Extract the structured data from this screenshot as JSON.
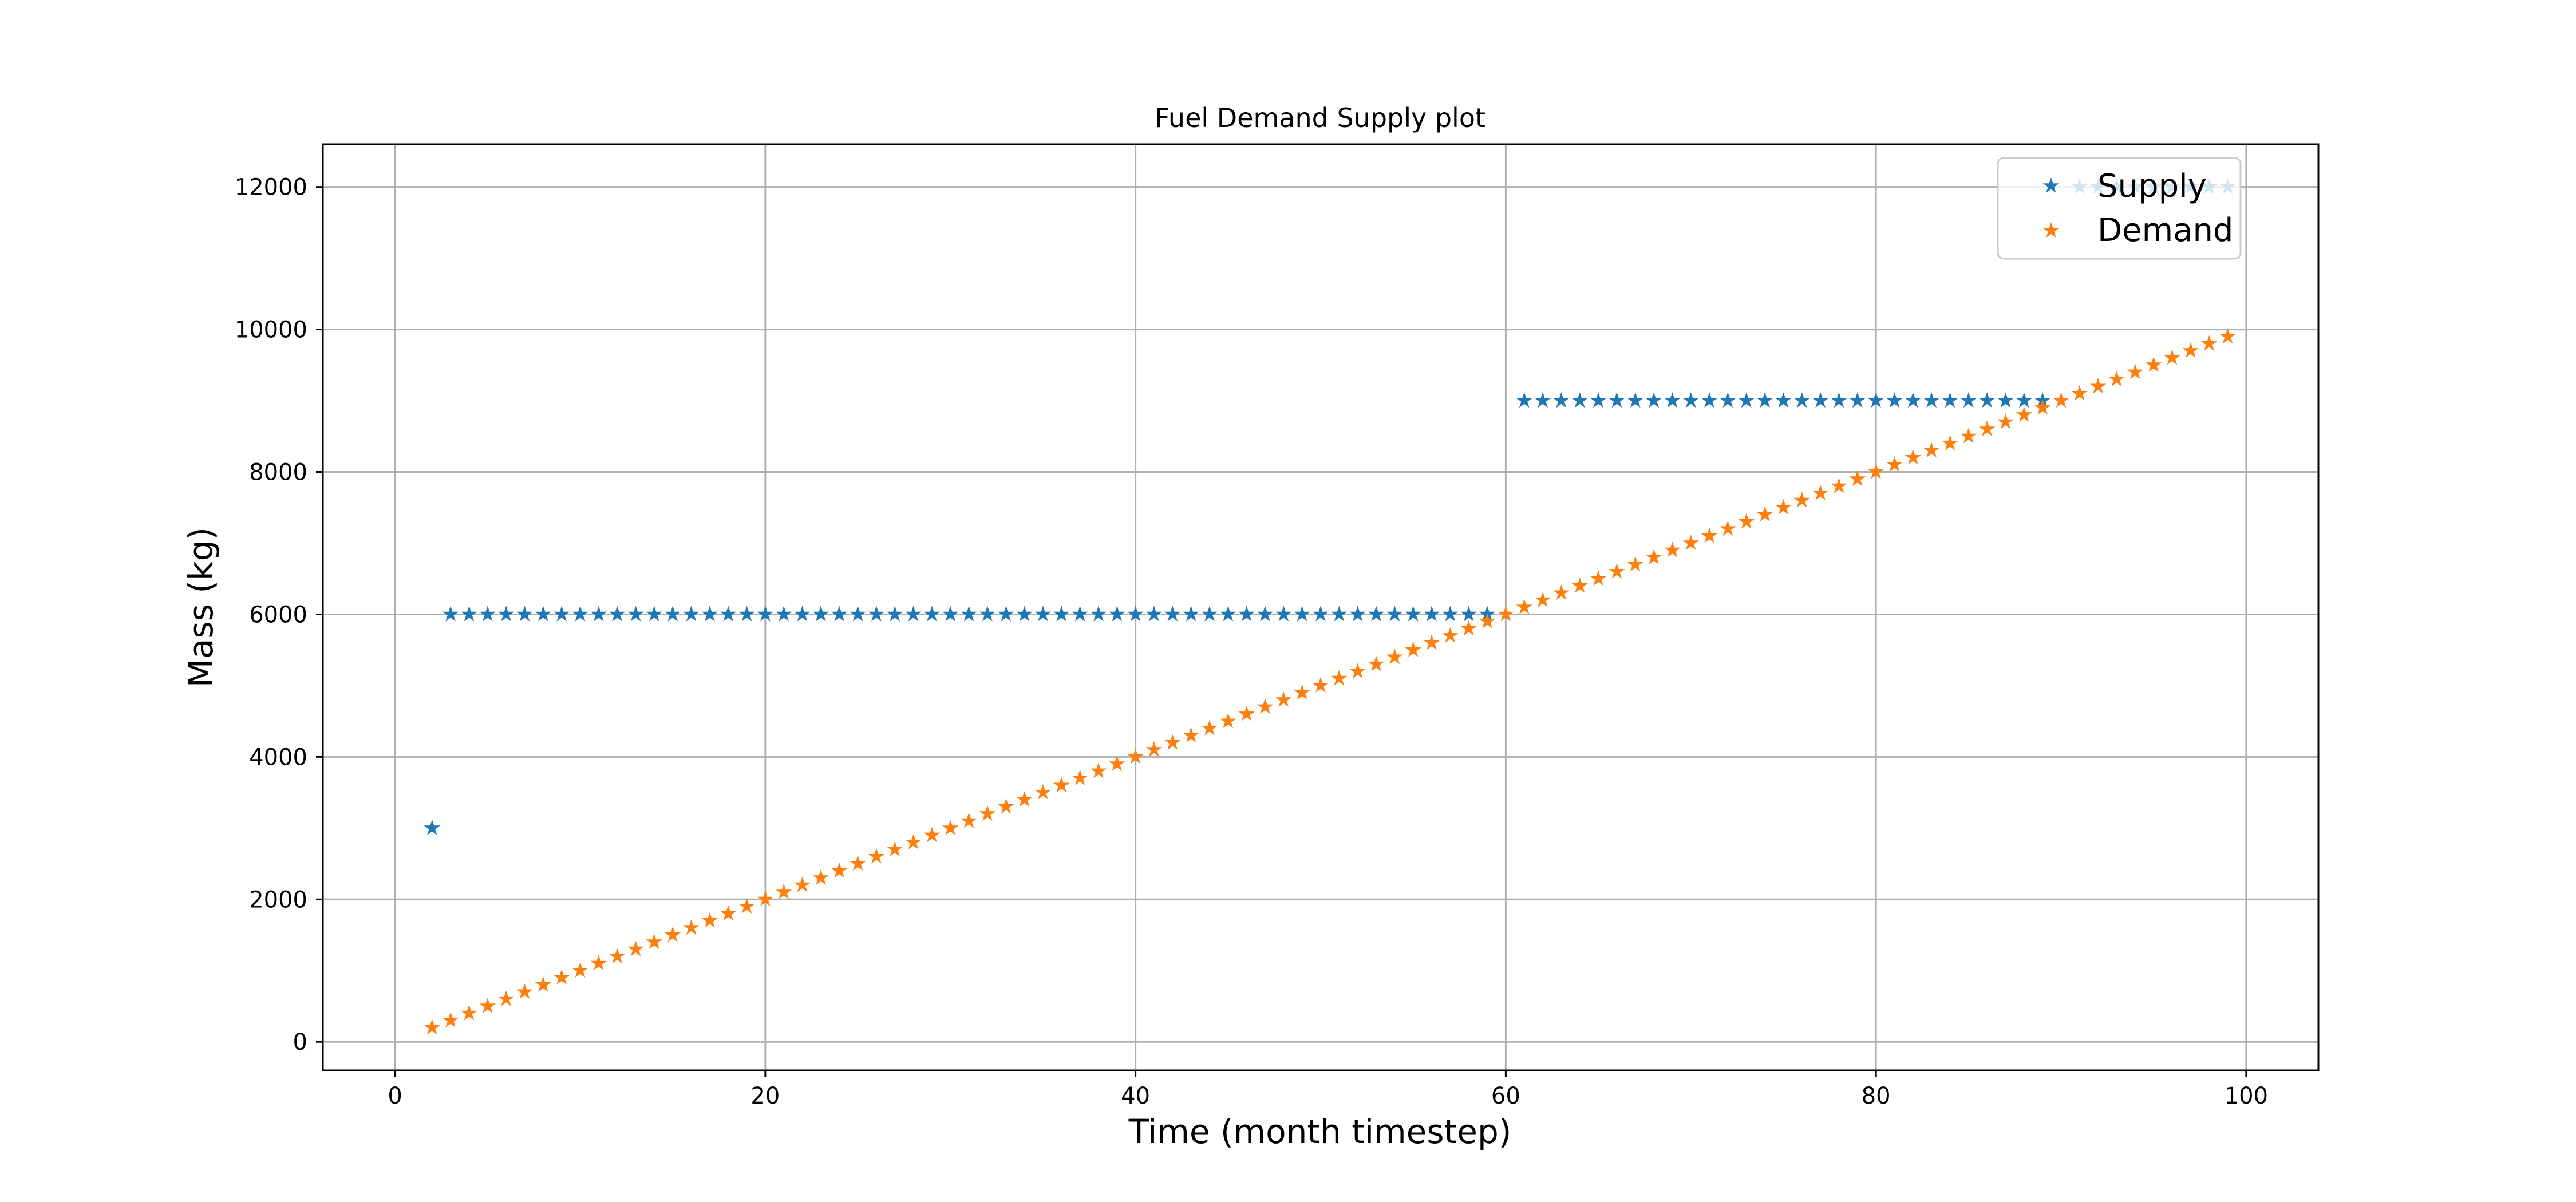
{
  "chart_data": {
    "type": "scatter",
    "title": "Fuel Demand Supply plot",
    "xlabel": "Time (month timestep)",
    "ylabel": "Mass (kg)",
    "xlim": [
      -3.9,
      103.9
    ],
    "ylim": [
      -400,
      12600
    ],
    "xticks": [
      0,
      20,
      40,
      60,
      80,
      100
    ],
    "yticks": [
      0,
      2000,
      4000,
      6000,
      8000,
      10000,
      12000
    ],
    "grid": true,
    "legend_position": "top-right",
    "marker": "star",
    "series": [
      {
        "name": "Supply",
        "color": "#1f77b4",
        "segments": [
          {
            "x_start": 2,
            "x_end": 2,
            "y": 3000
          },
          {
            "x_start": 3,
            "x_end": 59,
            "y": 6000
          },
          {
            "x_start": 61,
            "x_end": 89,
            "y": 9000
          },
          {
            "x_start": 91,
            "x_end": 99,
            "y": 12000
          }
        ]
      },
      {
        "name": "Demand",
        "color": "#ff7f0e",
        "x_start": 2,
        "x_end": 99,
        "y_per_month": 100
      }
    ]
  }
}
